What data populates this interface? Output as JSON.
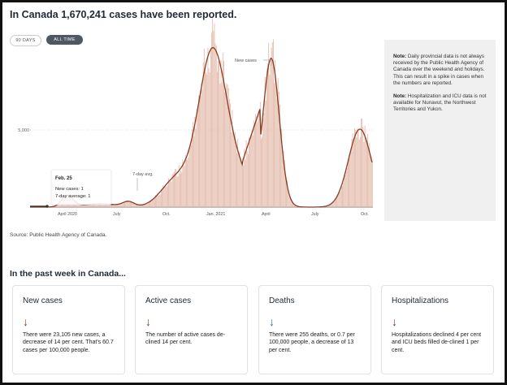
{
  "title": "In Canada 1,670,241 cases have been reported.",
  "toggles": {
    "days90": "90 DAYS",
    "alltime": "ALL TIME"
  },
  "note": {
    "p1_label": "Note:",
    "p1_text": "Daily provincial data is not always received by the Public Health Agency of Canada over the weekend and holidays. This can result in a spike in cases when the numbers are reported.",
    "p2_label": "Note:",
    "p2_text": "Hospitalization and ICU data is not available for Nunavut, the Northwest Territories and Yukon."
  },
  "chart": {
    "ytick": "5,000",
    "xticks": [
      "April 2020",
      "July",
      "Oct.",
      "Jan. 2021",
      "April",
      "July",
      "Oct."
    ],
    "annotation_new": "New cases",
    "annotation_avg": "7-day avg.",
    "tooltip": {
      "date": "Feb. 25",
      "new": "New cases: 1",
      "avg": "7-day average: 1"
    },
    "bar_color": "#e2b7a6",
    "line_color": "#8a3b22"
  },
  "source": "Source: Public Health Agency of Canada.",
  "week_title": "In the past week in Canada...",
  "cards": [
    {
      "title": "New cases",
      "arrow_color": "#8a3b22",
      "text": "There were 23,105 new cases, a decrease of 14 per cent. That's 60.7 cases per 100,000 people."
    },
    {
      "title": "Active cases",
      "arrow_color": "#8a3b22",
      "text": "The number of active cases de-clined 14 per cent."
    },
    {
      "title": "Deaths",
      "arrow_color": "#2d6f9e",
      "text": "There were 255 deaths, or 0.7 per 100,000 people, a decrease of 13 per cent."
    },
    {
      "title": "Hospitalizations",
      "arrow_color": "#7a1f6e",
      "text": "Hospitalizations declined 4 per cent and ICU beds filled de-clined 1 per cent."
    }
  ]
}
